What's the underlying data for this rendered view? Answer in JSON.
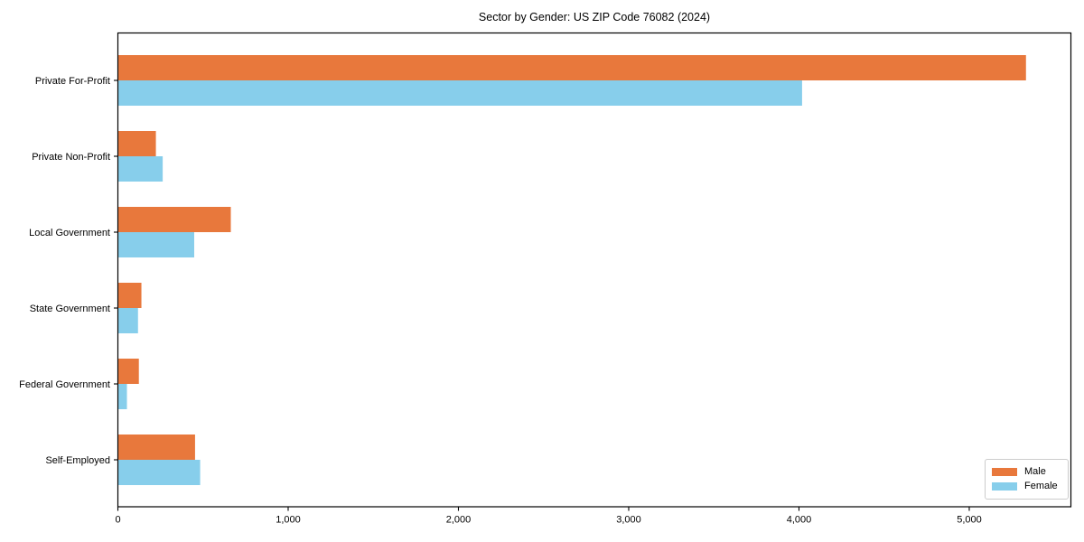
{
  "figure": {
    "title": "Sector by Gender: US ZIP Code 76082 (2024)"
  },
  "legend": {
    "entries": [
      {
        "label": "Male",
        "color": "#e8783c"
      },
      {
        "label": "Female",
        "color": "#87ceeb"
      }
    ]
  },
  "chart_data": {
    "type": "bar",
    "orientation": "horizontal",
    "title": "Sector by Gender: US ZIP Code 76082 (2024)",
    "categories": [
      "Private For-Profit",
      "Private Non-Profit",
      "Local Government",
      "State Government",
      "Federal Government",
      "Self-Employed"
    ],
    "series": [
      {
        "name": "Male",
        "color": "#e8783c",
        "values": [
          5330,
          220,
          660,
          135,
          120,
          450
        ]
      },
      {
        "name": "Female",
        "color": "#87ceeb",
        "values": [
          4015,
          260,
          445,
          115,
          50,
          480
        ]
      }
    ],
    "xlabel": "",
    "ylabel": "",
    "xlim": [
      0,
      5597
    ],
    "x_ticks": [
      0,
      1000,
      2000,
      3000,
      4000,
      5000
    ],
    "x_tick_labels": [
      "0",
      "1,000",
      "2,000",
      "3,000",
      "4,000",
      "5,000"
    ],
    "grid": false,
    "legend_position": "lower right",
    "frame_color": "#000000",
    "background_color": "#ffffff"
  }
}
